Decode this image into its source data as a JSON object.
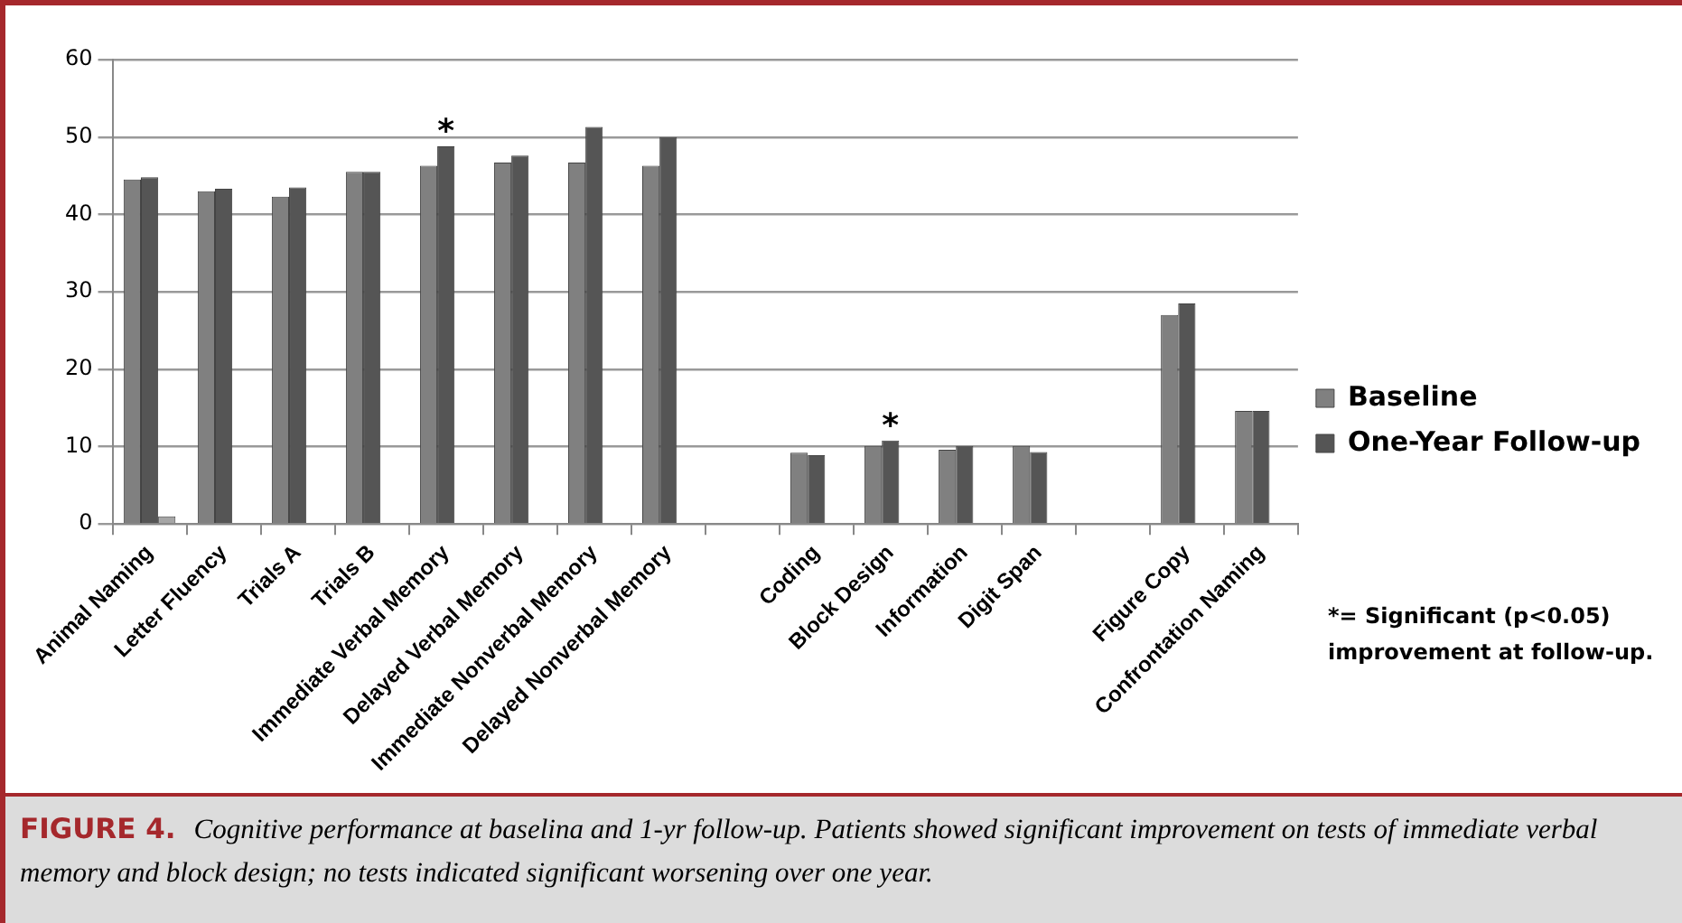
{
  "chart_data": {
    "type": "bar",
    "categories": [
      "Animal Naming",
      "Letter Fluency",
      "Trials A",
      "Trials B",
      "Immediate Verbal Memory",
      "Delayed Verbal Memory",
      "Immediate Nonverbal Memory",
      "Delayed Nonverbal Memory",
      null,
      "Coding",
      "Block Design",
      "Information",
      "Digit Span",
      null,
      "Figure Copy",
      "Confrontation Naming"
    ],
    "series": [
      {
        "name": "Baseline",
        "color": "#808080",
        "values": [
          44.5,
          43,
          42.3,
          45.5,
          46.3,
          46.7,
          46.7,
          46.3,
          null,
          9.2,
          10.1,
          9.6,
          10.1,
          null,
          27,
          14.6
        ]
      },
      {
        "name": "One-Year Follow-up",
        "color": "#555555",
        "values": [
          44.8,
          43.3,
          43.5,
          45.5,
          48.8,
          47.6,
          51.3,
          50,
          null,
          8.9,
          10.8,
          10.1,
          9.3,
          null,
          28.5,
          14.6
        ]
      },
      {
        "color": "#a6a6a6",
        "values": [
          1,
          null,
          null,
          null,
          null,
          null,
          null,
          null,
          null,
          null,
          null,
          null,
          null,
          null,
          null,
          null
        ]
      }
    ],
    "ylim": [
      0,
      60
    ],
    "yticks": [
      0,
      10,
      20,
      30,
      40,
      50,
      60
    ],
    "grid": "y",
    "legend": "right",
    "annotations": [
      {
        "text": "*",
        "x": "Immediate Verbal Memory",
        "y": 48.8
      },
      {
        "text": "*",
        "x": "Block Design",
        "y": 10.8
      },
      "*= Significant (p<0.05) improvement at follow-up.",
      "FIGURE 4.",
      "Cognitive performance at baselina and 1-yr follow-up. Patients showed significant improvement on tests of immediate verbal memory and block design; no tests indicated significant worsening over one year."
    ]
  }
}
